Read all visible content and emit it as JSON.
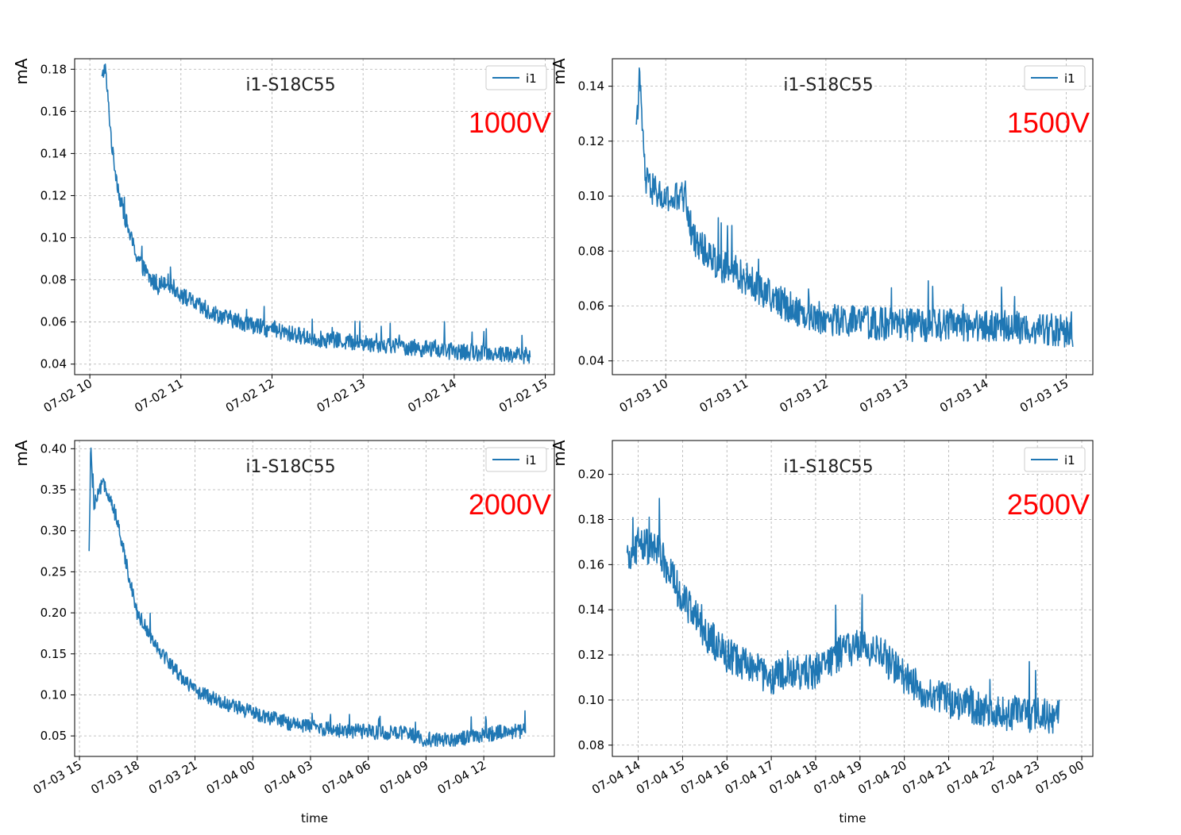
{
  "chart_data": [
    {
      "type": "line",
      "title": "i1-S18C55",
      "annotation": "1000V",
      "ylabel": "mA",
      "xlabel": "",
      "ylim": [
        0.035,
        0.185
      ],
      "xlim": [
        "07-02 09:50",
        "07-02 15:06"
      ],
      "x_ticks": [
        "07-02 10",
        "07-02 11",
        "07-02 12",
        "07-02 13",
        "07-02 14",
        "07-02 15"
      ],
      "y_ticks": [
        0.04,
        0.06,
        0.08,
        0.1,
        0.12,
        0.14,
        0.16,
        0.18
      ],
      "y_tick_labels": [
        "0.04",
        "0.06",
        "0.08",
        "0.10",
        "0.12",
        "0.14",
        "0.16",
        "0.18"
      ],
      "grid": true,
      "legend_position": "top-right",
      "series": [
        {
          "name": "i1",
          "noise": 0.004,
          "points": [
            [
              "07-02 10:08",
              0.175
            ],
            [
              "07-02 10:10",
              0.182
            ],
            [
              "07-02 10:12",
              0.165
            ],
            [
              "07-02 10:15",
              0.14
            ],
            [
              "07-02 10:20",
              0.118
            ],
            [
              "07-02 10:25",
              0.105
            ],
            [
              "07-02 10:30",
              0.093
            ],
            [
              "07-02 10:35",
              0.086
            ],
            [
              "07-02 10:40",
              0.08
            ],
            [
              "07-02 10:45",
              0.077
            ],
            [
              "07-02 10:50",
              0.08
            ],
            [
              "07-02 11:00",
              0.073
            ],
            [
              "07-02 11:15",
              0.066
            ],
            [
              "07-02 11:30",
              0.062
            ],
            [
              "07-02 12:00",
              0.056
            ],
            [
              "07-02 12:30",
              0.052
            ],
            [
              "07-02 13:00",
              0.05
            ],
            [
              "07-02 13:30",
              0.048
            ],
            [
              "07-02 14:00",
              0.046
            ],
            [
              "07-02 14:30",
              0.045
            ],
            [
              "07-02 14:50",
              0.044
            ]
          ]
        }
      ]
    },
    {
      "type": "line",
      "title": "i1-S18C55",
      "annotation": "1500V",
      "ylabel": "mA",
      "xlabel": "",
      "ylim": [
        0.035,
        0.15
      ],
      "xlim": [
        "07-03 09:20",
        "07-03 15:20"
      ],
      "x_ticks": [
        "07-03 10",
        "07-03 11",
        "07-03 12",
        "07-03 13",
        "07-03 14",
        "07-03 15"
      ],
      "y_ticks": [
        0.04,
        0.06,
        0.08,
        0.1,
        0.12,
        0.14
      ],
      "y_tick_labels": [
        "0.04",
        "0.06",
        "0.08",
        "0.10",
        "0.12",
        "0.14"
      ],
      "grid": true,
      "legend_position": "top-right",
      "series": [
        {
          "name": "i1",
          "noise": 0.006,
          "points": [
            [
              "07-03 09:38",
              0.12
            ],
            [
              "07-03 09:40",
              0.145
            ],
            [
              "07-03 09:45",
              0.105
            ],
            [
              "07-03 10:00",
              0.098
            ],
            [
              "07-03 10:15",
              0.1
            ],
            [
              "07-03 10:20",
              0.085
            ],
            [
              "07-03 10:40",
              0.075
            ],
            [
              "07-03 11:00",
              0.07
            ],
            [
              "07-03 11:20",
              0.063
            ],
            [
              "07-03 11:40",
              0.058
            ],
            [
              "07-03 12:00",
              0.055
            ],
            [
              "07-03 13:00",
              0.053
            ],
            [
              "07-03 14:00",
              0.053
            ],
            [
              "07-03 15:00",
              0.051
            ],
            [
              "07-03 15:05",
              0.05
            ]
          ]
        }
      ]
    },
    {
      "type": "line",
      "title": "i1-S18C55",
      "annotation": "2000V",
      "ylabel": "mA",
      "xlabel": "time",
      "ylim": [
        0.025,
        0.41
      ],
      "xlim": [
        "07-03 14:45",
        "07-04 15:40"
      ],
      "x_ticks": [
        "07-03 15",
        "07-03 18",
        "07-03 21",
        "07-04 00",
        "07-04 03",
        "07-04 06",
        "07-04 09",
        "07-04 12"
      ],
      "y_ticks": [
        0.05,
        0.1,
        0.15,
        0.2,
        0.25,
        0.3,
        0.35,
        0.4
      ],
      "y_tick_labels": [
        "0.05",
        "0.10",
        "0.15",
        "0.20",
        "0.25",
        "0.30",
        "0.35",
        "0.40"
      ],
      "grid": true,
      "legend_position": "top-right",
      "series": [
        {
          "name": "i1",
          "noise": 0.009,
          "points": [
            [
              "07-03 15:30",
              0.27
            ],
            [
              "07-03 15:35",
              0.4
            ],
            [
              "07-03 15:45",
              0.33
            ],
            [
              "07-03 16:15",
              0.36
            ],
            [
              "07-03 16:45",
              0.33
            ],
            [
              "07-03 17:15",
              0.28
            ],
            [
              "07-03 18:00",
              0.2
            ],
            [
              "07-03 19:00",
              0.16
            ],
            [
              "07-03 20:00",
              0.13
            ],
            [
              "07-03 21:00",
              0.105
            ],
            [
              "07-03 22:30",
              0.09
            ],
            [
              "07-04 00:00",
              0.078
            ],
            [
              "07-04 02:00",
              0.065
            ],
            [
              "07-04 04:00",
              0.058
            ],
            [
              "07-04 06:00",
              0.055
            ],
            [
              "07-04 08:00",
              0.053
            ],
            [
              "07-04 09:00",
              0.045
            ],
            [
              "07-04 11:00",
              0.047
            ],
            [
              "07-04 13:00",
              0.055
            ],
            [
              "07-04 14:10",
              0.056
            ]
          ]
        }
      ]
    },
    {
      "type": "line",
      "title": "i1-S18C55",
      "annotation": "2500V",
      "ylabel": "mA",
      "xlabel": "time",
      "ylim": [
        0.075,
        0.215
      ],
      "xlim": [
        "07-04 13:25",
        "07-05 00:15"
      ],
      "x_ticks": [
        "07-04 14",
        "07-04 15",
        "07-04 16",
        "07-04 17",
        "07-04 18",
        "07-04 19",
        "07-04 20",
        "07-04 21",
        "07-04 22",
        "07-04 23",
        "07-05 00"
      ],
      "y_ticks": [
        0.08,
        0.1,
        0.12,
        0.14,
        0.16,
        0.18,
        0.2
      ],
      "y_tick_labels": [
        "0.08",
        "0.10",
        "0.12",
        "0.14",
        "0.16",
        "0.18",
        "0.20"
      ],
      "grid": true,
      "legend_position": "top-right",
      "series": [
        {
          "name": "i1",
          "noise": 0.008,
          "points": [
            [
              "07-04 13:45",
              0.16
            ],
            [
              "07-04 14:00",
              0.17
            ],
            [
              "07-04 14:30",
              0.165
            ],
            [
              "07-04 15:00",
              0.145
            ],
            [
              "07-04 15:30",
              0.13
            ],
            [
              "07-04 16:00",
              0.12
            ],
            [
              "07-04 17:00",
              0.11
            ],
            [
              "07-04 18:00",
              0.113
            ],
            [
              "07-04 18:30",
              0.12
            ],
            [
              "07-04 19:00",
              0.125
            ],
            [
              "07-04 19:30",
              0.12
            ],
            [
              "07-04 20:00",
              0.11
            ],
            [
              "07-04 20:30",
              0.103
            ],
            [
              "07-04 21:00",
              0.1
            ],
            [
              "07-04 22:00",
              0.095
            ],
            [
              "07-04 23:00",
              0.093
            ],
            [
              "07-04 23:30",
              0.093
            ]
          ]
        }
      ]
    }
  ]
}
